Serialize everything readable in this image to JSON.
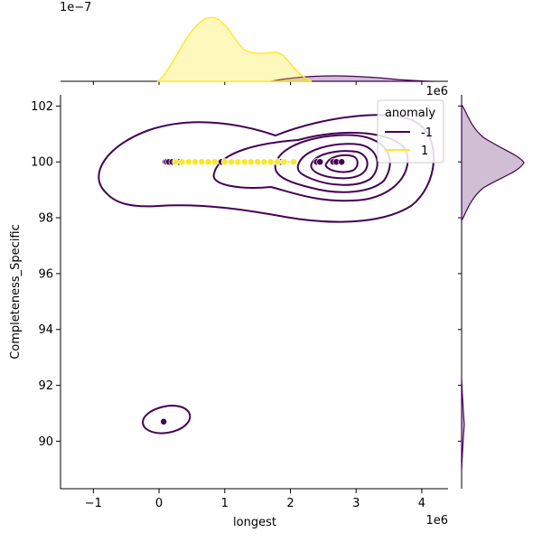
{
  "chart_data": {
    "type": "scatter",
    "kind": "joint-plot-kde",
    "xlabel": "longest",
    "ylabel": "Completeness_Specific",
    "x_offset_label": "1e6",
    "x_offset_label_top": "1e6",
    "marg_x_offset_label": "1e−7",
    "xlim": [
      -1.5,
      4.4
    ],
    "ylim": [
      88.3,
      102.4
    ],
    "x_ticks": [
      -1,
      0,
      1,
      2,
      3,
      4
    ],
    "x_tick_labels": [
      "−1",
      "0",
      "1",
      "2",
      "3",
      "4"
    ],
    "y_ticks": [
      90,
      92,
      94,
      96,
      98,
      100,
      102
    ],
    "y_tick_labels": [
      "90",
      "92",
      "94",
      "96",
      "98",
      "100",
      "102"
    ],
    "legend": {
      "title": "anomaly",
      "placement": "top-right",
      "entries": [
        {
          "label": "-1",
          "color": "#440154"
        },
        {
          "label": "1",
          "color": "#fde725"
        }
      ]
    },
    "series": [
      {
        "name": "-1",
        "color": "#440154",
        "points": [
          {
            "x": 0.1,
            "y": 100
          },
          {
            "x": 0.12,
            "y": 100
          },
          {
            "x": 0.15,
            "y": 100
          },
          {
            "x": 0.2,
            "y": 100
          },
          {
            "x": 0.3,
            "y": 100
          },
          {
            "x": 0.95,
            "y": 100
          },
          {
            "x": 1.85,
            "y": 100
          },
          {
            "x": 2.4,
            "y": 100
          },
          {
            "x": 2.45,
            "y": 100
          },
          {
            "x": 2.65,
            "y": 100
          },
          {
            "x": 2.7,
            "y": 100
          },
          {
            "x": 2.78,
            "y": 100
          },
          {
            "x": 0.07,
            "y": 90.7
          }
        ]
      },
      {
        "name": "1",
        "color": "#fde725",
        "points": [
          {
            "x": 0.25,
            "y": 100
          },
          {
            "x": 0.35,
            "y": 100
          },
          {
            "x": 0.45,
            "y": 100
          },
          {
            "x": 0.55,
            "y": 100
          },
          {
            "x": 0.65,
            "y": 100
          },
          {
            "x": 0.75,
            "y": 100
          },
          {
            "x": 0.85,
            "y": 100
          },
          {
            "x": 1.0,
            "y": 100
          },
          {
            "x": 1.1,
            "y": 100
          },
          {
            "x": 1.2,
            "y": 100
          },
          {
            "x": 1.3,
            "y": 100
          },
          {
            "x": 1.4,
            "y": 100
          },
          {
            "x": 1.5,
            "y": 100
          },
          {
            "x": 1.6,
            "y": 100
          },
          {
            "x": 1.7,
            "y": 100
          },
          {
            "x": 1.8,
            "y": 100
          },
          {
            "x": 1.9,
            "y": 100
          },
          {
            "x": 2.05,
            "y": 100
          }
        ]
      }
    ]
  }
}
